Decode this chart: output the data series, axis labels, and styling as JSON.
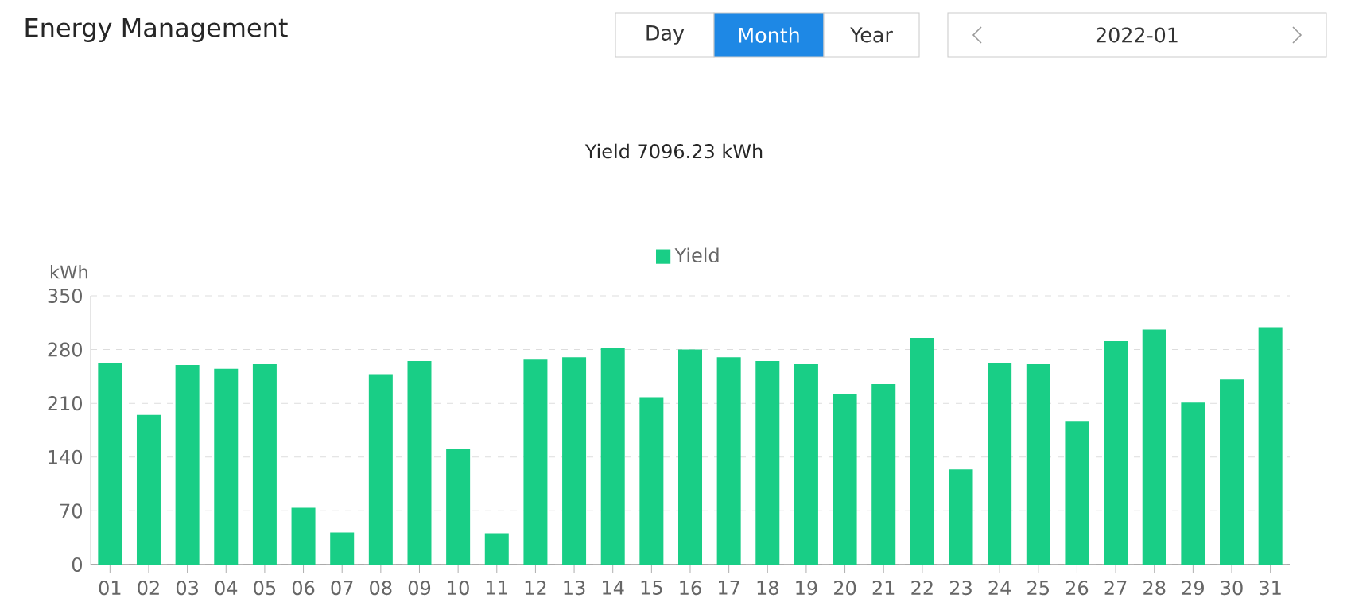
{
  "chart_data": {
    "type": "bar",
    "title": "Energy Management",
    "subtitle": "Yield 7096.23 kWh",
    "ylabel": "kWh",
    "annotations": [
      "Day",
      "Month",
      "Year",
      "2022-01"
    ],
    "categories": [
      "01",
      "02",
      "03",
      "04",
      "05",
      "06",
      "07",
      "08",
      "09",
      "10",
      "11",
      "12",
      "13",
      "14",
      "15",
      "16",
      "17",
      "18",
      "19",
      "20",
      "21",
      "22",
      "23",
      "24",
      "25",
      "26",
      "27",
      "28",
      "29",
      "30",
      "31"
    ],
    "series": [
      {
        "name": "Yield",
        "color": "#19ce86",
        "values": [
          262,
          195,
          260,
          255,
          261,
          74,
          42,
          248,
          265,
          150,
          41,
          267,
          270,
          282,
          218,
          280,
          270,
          265,
          261,
          222,
          235,
          295,
          124,
          262,
          261,
          186,
          291,
          306,
          211,
          241,
          309
        ]
      }
    ],
    "ylim": [
      0,
      350
    ],
    "yticks": [
      0,
      70,
      140,
      210,
      280,
      350
    ],
    "grid": "y",
    "legend": "top"
  }
}
